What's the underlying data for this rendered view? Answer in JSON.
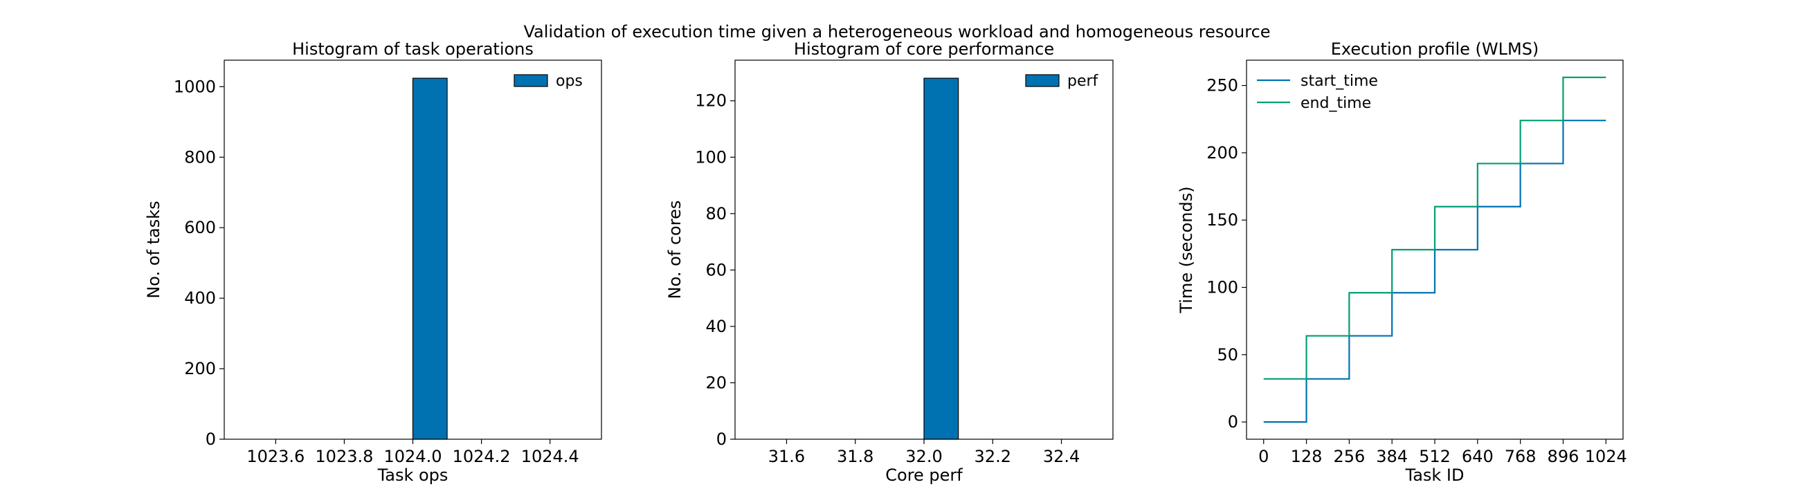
{
  "figure": {
    "suptitle": "Validation of execution time given a heterogeneous workload and homogeneous resource"
  },
  "chart_data": [
    {
      "type": "bar",
      "title": "Histogram of task operations",
      "xlabel": "Task ops",
      "ylabel": "No. of tasks",
      "xlim": [
        1023.45,
        1024.55
      ],
      "ylim": [
        0,
        1075.2
      ],
      "xticks": [
        1023.6,
        1023.8,
        1024.0,
        1024.2,
        1024.4
      ],
      "xtick_labels": [
        "1023.6",
        "1023.8",
        "1024.0",
        "1024.2",
        "1024.4"
      ],
      "yticks": [
        0,
        200,
        400,
        600,
        800,
        1000
      ],
      "ytick_labels": [
        "0",
        "200",
        "400",
        "600",
        "800",
        "1000"
      ],
      "bars": [
        {
          "x_start": 1024.0,
          "x_end": 1024.1,
          "value": 1024
        }
      ],
      "series": [
        {
          "name": "ops",
          "color": "#0072b2"
        }
      ],
      "legend": "top-right"
    },
    {
      "type": "bar",
      "title": "Histogram of core performance",
      "xlabel": "Core perf",
      "ylabel": "No. of cores",
      "xlim": [
        31.45,
        32.55
      ],
      "ylim": [
        0,
        134.4
      ],
      "xticks": [
        31.6,
        31.8,
        32.0,
        32.2,
        32.4
      ],
      "xtick_labels": [
        "31.6",
        "31.8",
        "32.0",
        "32.2",
        "32.4"
      ],
      "yticks": [
        0,
        20,
        40,
        60,
        80,
        100,
        120
      ],
      "ytick_labels": [
        "0",
        "20",
        "40",
        "60",
        "80",
        "100",
        "120"
      ],
      "bars": [
        {
          "x_start": 32.0,
          "x_end": 32.1,
          "value": 128
        }
      ],
      "series": [
        {
          "name": "perf",
          "color": "#0072b2"
        }
      ],
      "legend": "top-right"
    },
    {
      "type": "line",
      "title": "Execution profile (WLMS)",
      "xlabel": "Task ID",
      "ylabel": "Time (seconds)",
      "xlim": [
        -51.2,
        1075.2
      ],
      "ylim": [
        -12.8,
        268.8
      ],
      "xticks": [
        0,
        128,
        256,
        384,
        512,
        640,
        768,
        896,
        1024
      ],
      "xtick_labels": [
        "0",
        "128",
        "256",
        "384",
        "512",
        "640",
        "768",
        "896",
        "1024"
      ],
      "yticks": [
        0,
        50,
        100,
        150,
        200,
        250
      ],
      "ytick_labels": [
        "0",
        "50",
        "100",
        "150",
        "200",
        "250"
      ],
      "series": [
        {
          "name": "start_time",
          "color": "#0072b2",
          "x": [
            0,
            128,
            128,
            256,
            256,
            384,
            384,
            512,
            512,
            640,
            640,
            768,
            768,
            896,
            896,
            1024
          ],
          "y": [
            0,
            0,
            32,
            32,
            64,
            64,
            96,
            96,
            128,
            128,
            160,
            160,
            192,
            192,
            224,
            224
          ]
        },
        {
          "name": "end_time",
          "color": "#009e73",
          "x": [
            0,
            128,
            128,
            256,
            256,
            384,
            384,
            512,
            512,
            640,
            640,
            768,
            768,
            896,
            896,
            1024
          ],
          "y": [
            32,
            32,
            64,
            64,
            96,
            96,
            128,
            128,
            160,
            160,
            192,
            192,
            224,
            224,
            256,
            256
          ]
        }
      ],
      "legend": "top-left"
    }
  ]
}
